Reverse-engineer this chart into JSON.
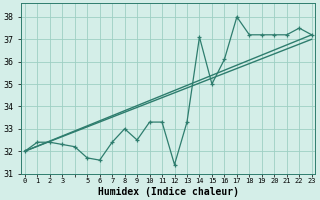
{
  "xlabel": "Humidex (Indice chaleur)",
  "x_values": [
    0,
    1,
    2,
    3,
    4,
    5,
    6,
    7,
    8,
    9,
    10,
    11,
    12,
    13,
    14,
    15,
    16,
    17,
    18,
    19,
    20,
    21,
    22,
    23
  ],
  "x_tick_labels": [
    "0",
    "1",
    "2",
    "3",
    "",
    "5",
    "6",
    "7",
    "8",
    "9",
    "10",
    "11",
    "12",
    "13",
    "14",
    "15",
    "16",
    "17",
    "18",
    "19",
    "20",
    "21",
    "22",
    "23"
  ],
  "data_line": [
    32.0,
    32.4,
    32.4,
    32.3,
    32.2,
    31.7,
    31.6,
    32.4,
    33.0,
    32.5,
    33.3,
    33.3,
    31.4,
    33.3,
    37.1,
    35.0,
    36.1,
    38.0,
    37.2,
    37.2,
    37.2,
    37.2,
    37.5,
    37.2
  ],
  "trend1_x": [
    0,
    23
  ],
  "trend1_y": [
    32.0,
    37.2
  ],
  "trend2_x": [
    0,
    23
  ],
  "trend2_y": [
    32.0,
    37.0
  ],
  "line_color": "#2e7d6e",
  "bg_color": "#d4eee8",
  "grid_color": "#9ecfc4",
  "ylim": [
    31.0,
    38.6
  ],
  "yticks": [
    31,
    32,
    33,
    34,
    35,
    36,
    37,
    38
  ],
  "xlim": [
    -0.3,
    23.3
  ]
}
